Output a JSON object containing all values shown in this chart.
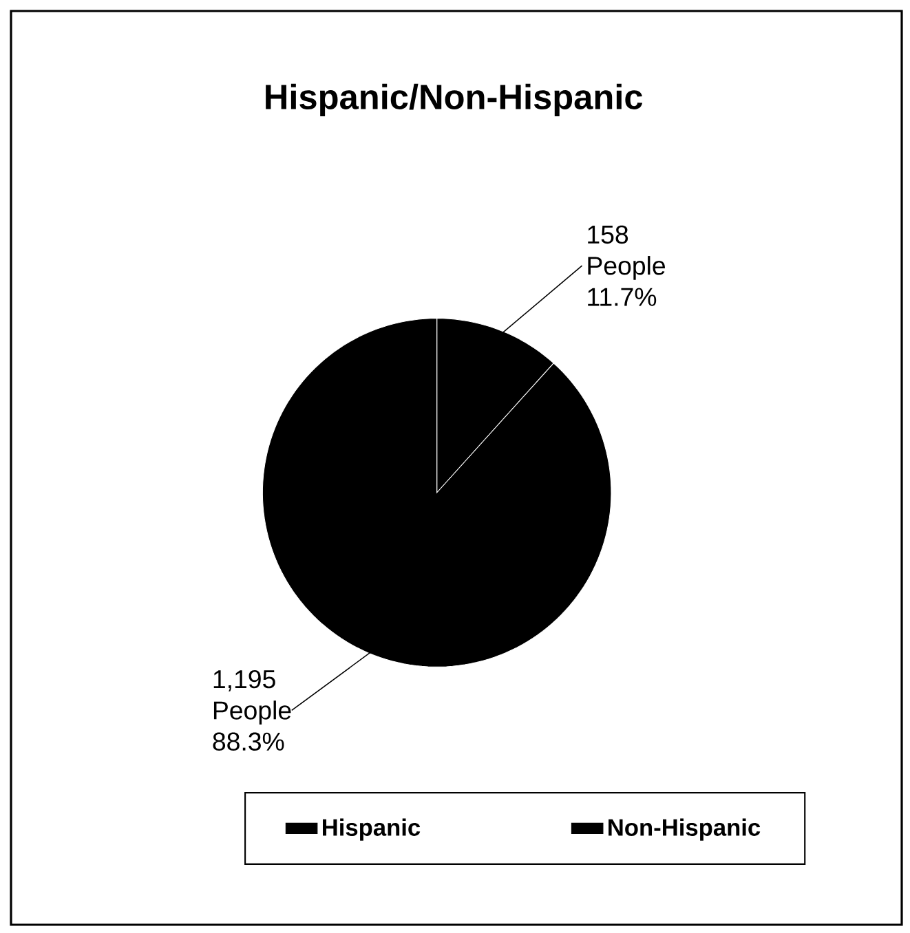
{
  "chart_data": {
    "type": "pie",
    "title": "Hispanic/Non-Hispanic",
    "categories": [
      "Hispanic",
      "Non-Hispanic"
    ],
    "values": [
      158,
      1195
    ],
    "colors": [
      "#000000",
      "#000000"
    ],
    "value_labels": [
      "158 People 11.7%",
      "1,195 People 88.3%"
    ],
    "legend": "bottom"
  }
}
